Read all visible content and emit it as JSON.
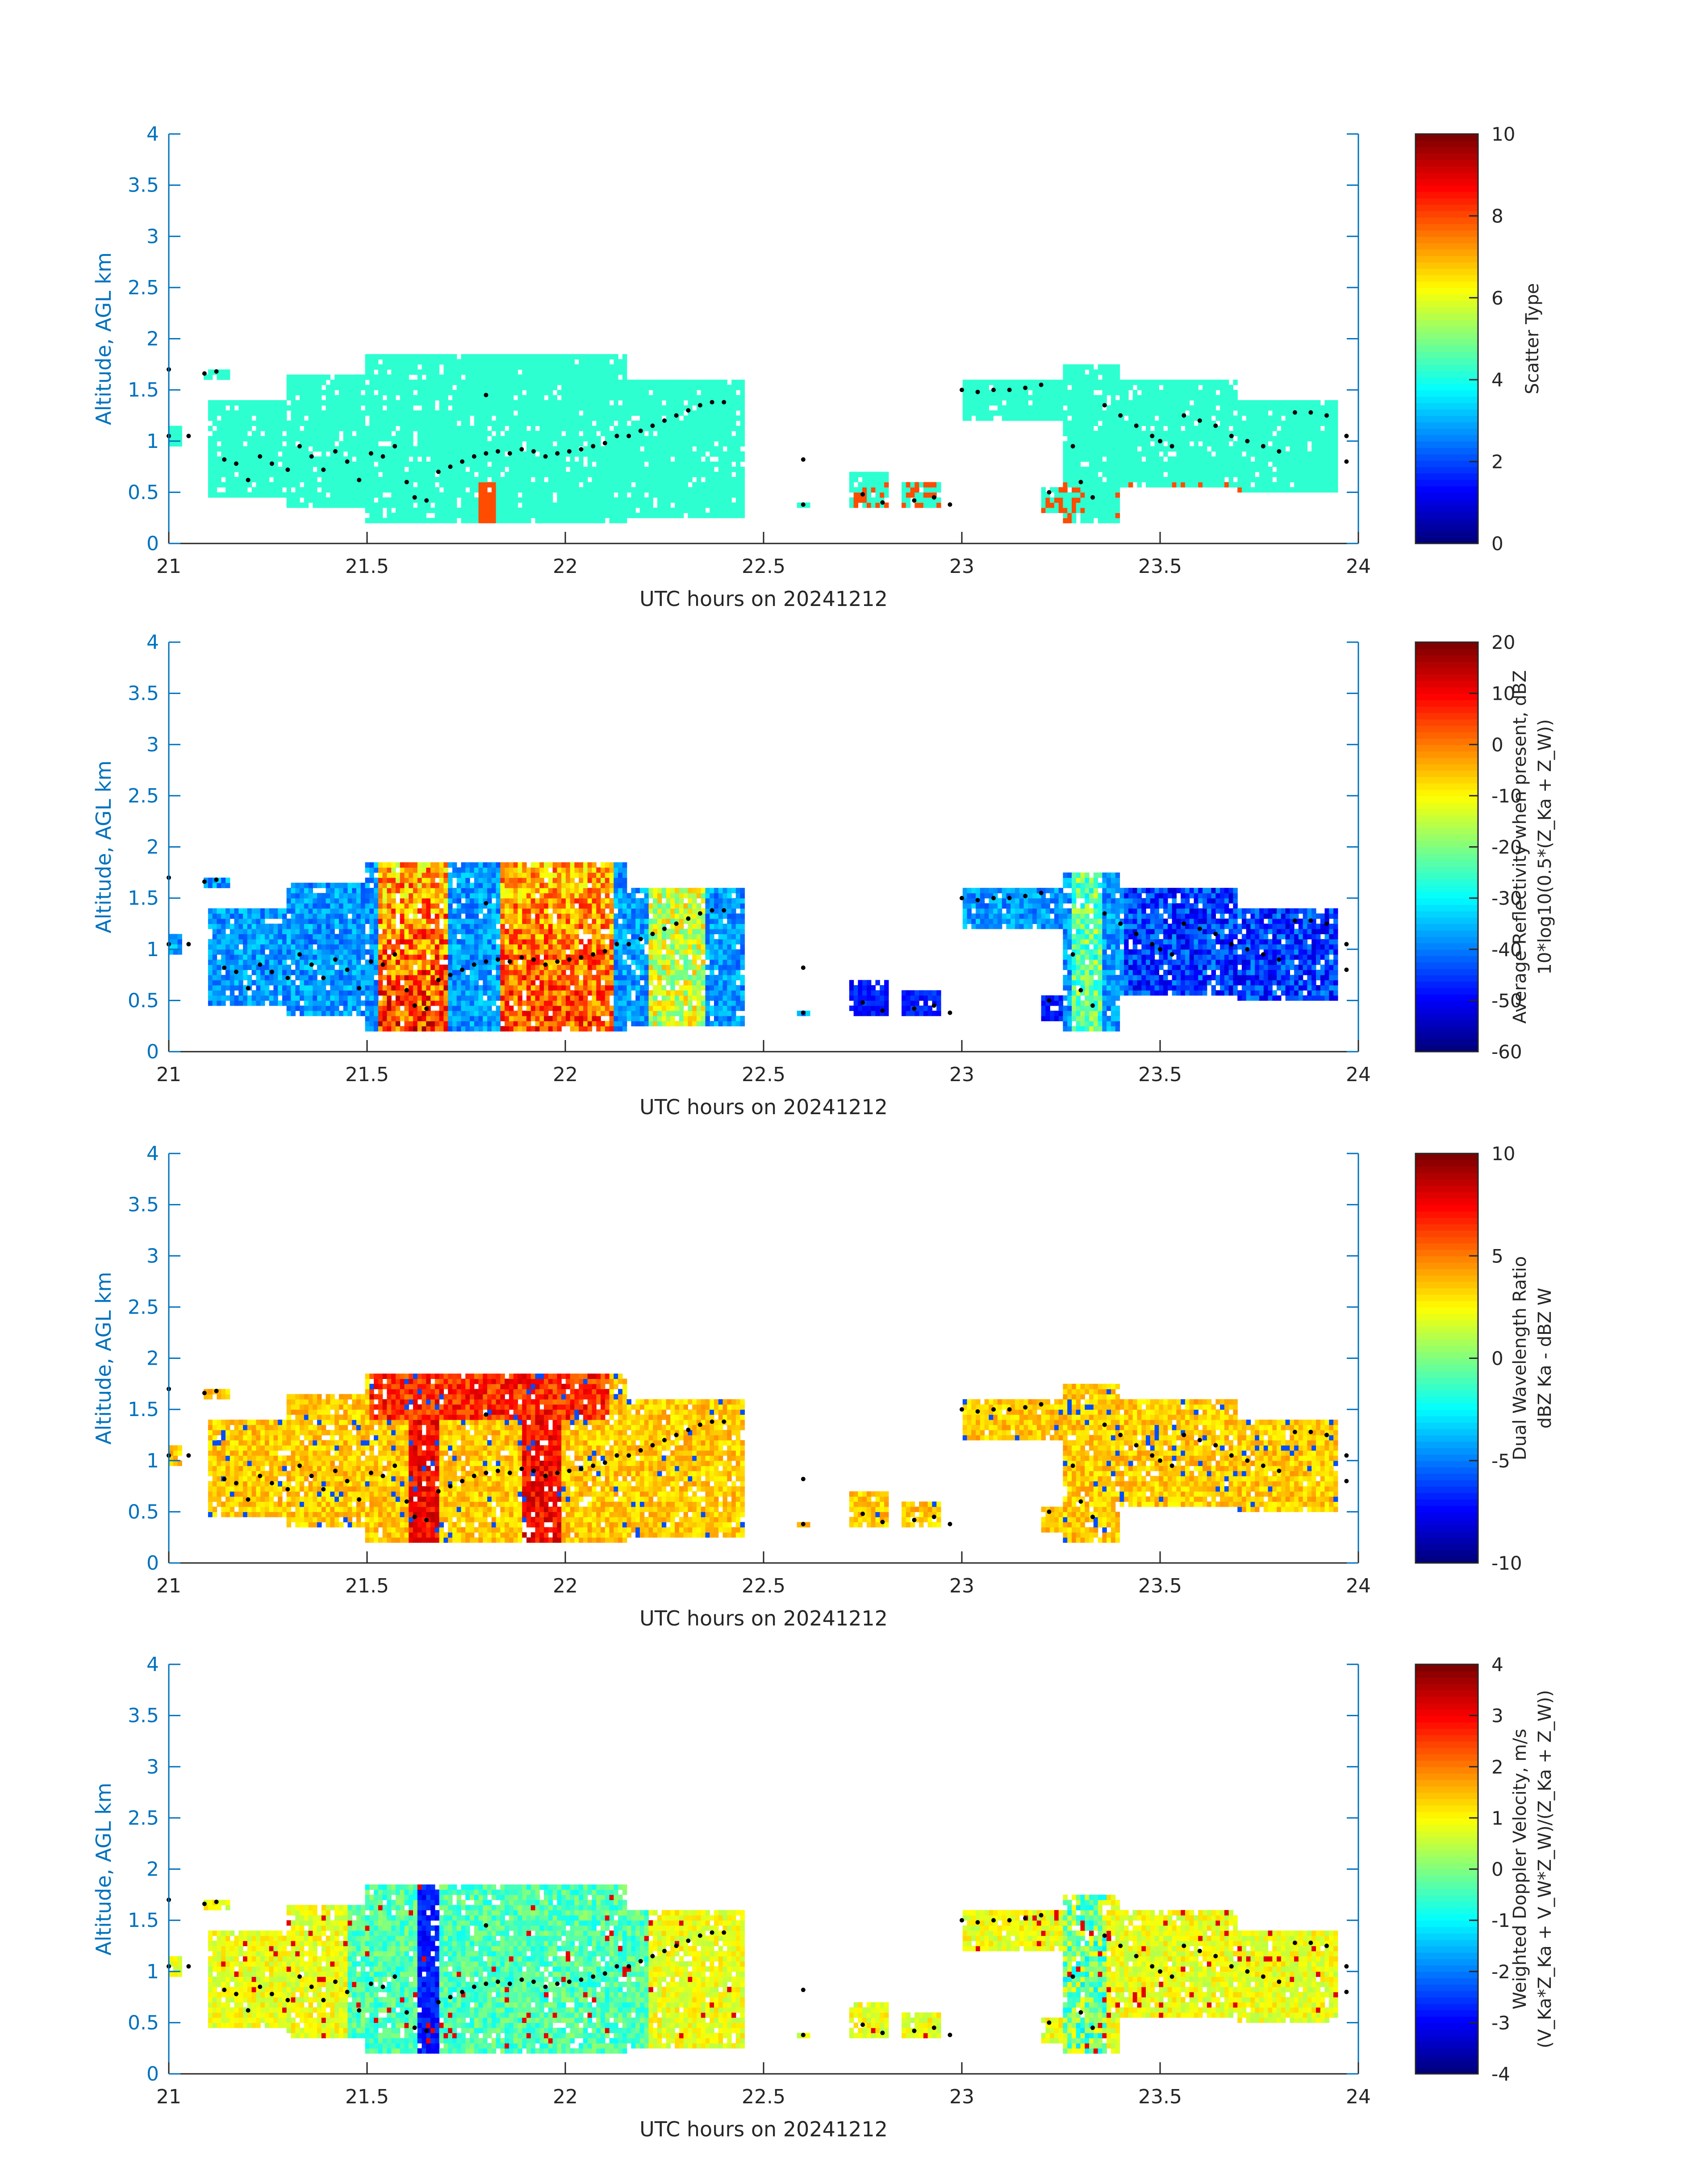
{
  "figure": {
    "background": "#ffffff",
    "axis_color": "#0072bd",
    "text_color": "#262626",
    "ylabel": "Altitude, AGL km",
    "xlabel": "UTC hours on 20241212",
    "x_ticks": [
      "21",
      "21.5",
      "22",
      "22.5",
      "23",
      "23.5",
      "24"
    ],
    "y_ticks": [
      "0",
      "0.5",
      "1",
      "1.5",
      "2",
      "2.5",
      "3",
      "3.5",
      "4"
    ]
  },
  "chart_data": [
    {
      "type": "heatmap",
      "title": "",
      "xlabel": "UTC hours on 20241212",
      "ylabel": "Altitude, AGL km",
      "xlim": [
        21,
        24
      ],
      "ylim": [
        0,
        4
      ],
      "colormap": "jet",
      "colorbar": {
        "label_lines": [
          "Scatter Type"
        ],
        "clim": [
          0,
          10
        ],
        "ticks": [
          "0",
          "2",
          "4",
          "6",
          "8",
          "10"
        ]
      },
      "field": "scatter_type"
    },
    {
      "type": "heatmap",
      "title": "",
      "xlabel": "UTC hours on 20241212",
      "ylabel": "Altitude, AGL km",
      "xlim": [
        21,
        24
      ],
      "ylim": [
        0,
        4
      ],
      "colormap": "jet",
      "colorbar": {
        "label_lines": [
          "Average Reflectivity when present, dBZ",
          "10*log10(0.5*(Z_Ka + Z_W))"
        ],
        "clim": [
          -60,
          20
        ],
        "ticks": [
          "-60",
          "-50",
          "-40",
          "-30",
          "-20",
          "-10",
          "0",
          "10",
          "20"
        ]
      },
      "field": "reflectivity"
    },
    {
      "type": "heatmap",
      "title": "",
      "xlabel": "UTC hours on 20241212",
      "ylabel": "Altitude, AGL km",
      "xlim": [
        21,
        24
      ],
      "ylim": [
        0,
        4
      ],
      "colormap": "jet",
      "colorbar": {
        "label_lines": [
          "Dual Wavelength Ratio",
          "dBZ Ka - dBZ W"
        ],
        "clim": [
          -10,
          10
        ],
        "ticks": [
          "-10",
          "-5",
          "0",
          "5",
          "10"
        ]
      },
      "field": "dwr"
    },
    {
      "type": "heatmap",
      "title": "",
      "xlabel": "UTC hours on 20241212",
      "ylabel": "Altitude, AGL km",
      "xlim": [
        21,
        24
      ],
      "ylim": [
        0,
        4
      ],
      "colormap": "jet",
      "colorbar": {
        "label_lines": [
          "Weighted Doppler Velocity, m/s",
          "(V_Ka*Z_Ka + V_W*Z_W)/(Z_Ka + Z_W))"
        ],
        "clim": [
          -4,
          4
        ],
        "ticks": [
          "-4",
          "-3",
          "-2",
          "-1",
          "0",
          "1",
          "2",
          "3",
          "4"
        ]
      },
      "field": "doppler"
    }
  ],
  "cloud_segments": [
    {
      "t0": 21.0,
      "t1": 21.03,
      "bottom": 0.95,
      "top": 1.15
    },
    {
      "t0": 21.09,
      "t1": 21.15,
      "bottom": 1.6,
      "top": 1.72
    },
    {
      "t0": 21.1,
      "t1": 21.3,
      "bottom": 0.45,
      "top": 1.4
    },
    {
      "t0": 21.3,
      "t1": 21.5,
      "bottom": 0.35,
      "top": 1.65
    },
    {
      "t0": 21.5,
      "t1": 21.75,
      "bottom": 0.2,
      "top": 1.85
    },
    {
      "t0": 21.75,
      "t1": 22.15,
      "bottom": 0.2,
      "top": 1.85
    },
    {
      "t0": 22.15,
      "t1": 22.45,
      "bottom": 0.25,
      "top": 1.6
    },
    {
      "t0": 22.58,
      "t1": 22.62,
      "bottom": 0.33,
      "top": 0.42
    },
    {
      "t0": 22.72,
      "t1": 22.82,
      "bottom": 0.35,
      "top": 0.72
    },
    {
      "t0": 22.85,
      "t1": 22.95,
      "bottom": 0.35,
      "top": 0.62
    },
    {
      "t0": 23.0,
      "t1": 23.25,
      "bottom": 1.2,
      "top": 1.62
    },
    {
      "t0": 23.2,
      "t1": 23.28,
      "bottom": 0.3,
      "top": 0.55
    },
    {
      "t0": 23.25,
      "t1": 23.4,
      "bottom": 0.2,
      "top": 1.75
    },
    {
      "t0": 23.4,
      "t1": 23.7,
      "bottom": 0.55,
      "top": 1.6
    },
    {
      "t0": 23.7,
      "t1": 23.95,
      "bottom": 0.5,
      "top": 1.4
    }
  ],
  "dot_trace": [
    [
      21.0,
      1.7
    ],
    [
      21.0,
      1.05
    ],
    [
      21.05,
      1.05
    ],
    [
      21.09,
      1.66
    ],
    [
      21.12,
      1.68
    ],
    [
      21.14,
      0.82
    ],
    [
      21.17,
      0.78
    ],
    [
      21.2,
      0.62
    ],
    [
      21.23,
      0.85
    ],
    [
      21.26,
      0.78
    ],
    [
      21.3,
      0.72
    ],
    [
      21.33,
      0.95
    ],
    [
      21.36,
      0.85
    ],
    [
      21.39,
      0.72
    ],
    [
      21.42,
      0.9
    ],
    [
      21.45,
      0.8
    ],
    [
      21.48,
      0.62
    ],
    [
      21.51,
      0.88
    ],
    [
      21.54,
      0.85
    ],
    [
      21.57,
      0.95
    ],
    [
      21.6,
      0.6
    ],
    [
      21.62,
      0.45
    ],
    [
      21.65,
      0.42
    ],
    [
      21.68,
      0.7
    ],
    [
      21.71,
      0.75
    ],
    [
      21.74,
      0.8
    ],
    [
      21.77,
      0.85
    ],
    [
      21.8,
      0.88
    ],
    [
      21.83,
      0.9
    ],
    [
      21.86,
      0.88
    ],
    [
      21.89,
      0.92
    ],
    [
      21.92,
      0.9
    ],
    [
      21.95,
      0.85
    ],
    [
      21.98,
      0.88
    ],
    [
      22.01,
      0.9
    ],
    [
      22.04,
      0.92
    ],
    [
      22.07,
      0.95
    ],
    [
      22.1,
      0.98
    ],
    [
      22.13,
      1.05
    ],
    [
      22.16,
      1.05
    ],
    [
      22.19,
      1.1
    ],
    [
      22.22,
      1.15
    ],
    [
      22.25,
      1.2
    ],
    [
      22.28,
      1.25
    ],
    [
      22.31,
      1.3
    ],
    [
      22.34,
      1.35
    ],
    [
      22.37,
      1.38
    ],
    [
      22.4,
      1.38
    ],
    [
      21.8,
      1.45
    ],
    [
      22.6,
      0.82
    ],
    [
      22.6,
      0.38
    ],
    [
      22.75,
      0.48
    ],
    [
      22.8,
      0.4
    ],
    [
      22.88,
      0.42
    ],
    [
      22.93,
      0.45
    ],
    [
      22.97,
      0.38
    ],
    [
      23.0,
      1.5
    ],
    [
      23.04,
      1.48
    ],
    [
      23.08,
      1.5
    ],
    [
      23.12,
      1.5
    ],
    [
      23.16,
      1.52
    ],
    [
      23.2,
      1.55
    ],
    [
      23.22,
      0.5
    ],
    [
      23.28,
      0.95
    ],
    [
      23.3,
      0.6
    ],
    [
      23.33,
      0.45
    ],
    [
      23.36,
      1.35
    ],
    [
      23.4,
      1.25
    ],
    [
      23.44,
      1.15
    ],
    [
      23.48,
      1.05
    ],
    [
      23.5,
      1.0
    ],
    [
      23.53,
      0.95
    ],
    [
      23.56,
      1.25
    ],
    [
      23.6,
      1.2
    ],
    [
      23.64,
      1.15
    ],
    [
      23.68,
      1.05
    ],
    [
      23.72,
      1.0
    ],
    [
      23.76,
      0.95
    ],
    [
      23.8,
      0.9
    ],
    [
      23.84,
      1.28
    ],
    [
      23.88,
      1.28
    ],
    [
      23.92,
      1.25
    ],
    [
      23.97,
      0.8
    ],
    [
      23.97,
      1.05
    ]
  ]
}
